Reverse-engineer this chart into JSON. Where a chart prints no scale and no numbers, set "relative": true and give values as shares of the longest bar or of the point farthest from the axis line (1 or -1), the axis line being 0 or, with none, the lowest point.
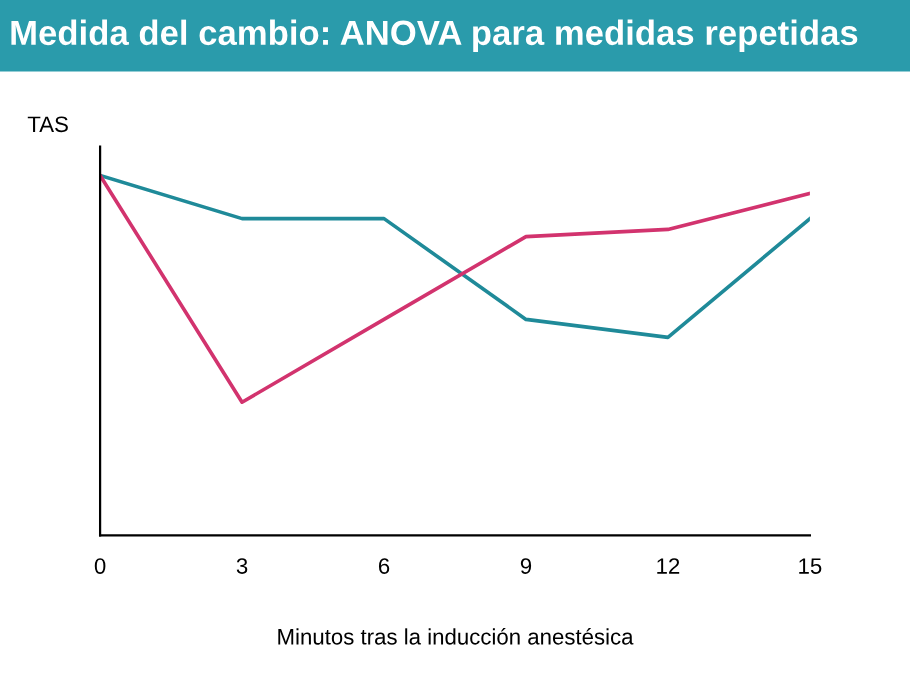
{
  "chart_data": {
    "type": "line",
    "title": "Medida del cambio: ANOVA para medidas repetidas",
    "xlabel": "Minutos tras la inducción anestésica",
    "ylabel": "TAS",
    "relative": true,
    "x": [
      0,
      3,
      6,
      9,
      12,
      15
    ],
    "xlim": [
      0,
      15
    ],
    "xticks": [
      0,
      3,
      6,
      9,
      12,
      15
    ],
    "series": [
      {
        "color": "#1f8a99",
        "values": [
          1,
          0.88,
          0.88,
          0.6,
          0.55,
          0.88
        ]
      },
      {
        "color": "#d2336e",
        "values": [
          1,
          0.37,
          0.6,
          0.83,
          0.85,
          0.95
        ]
      }
    ],
    "grid": false,
    "legend": false,
    "marker": "none",
    "line_style": "solid"
  }
}
